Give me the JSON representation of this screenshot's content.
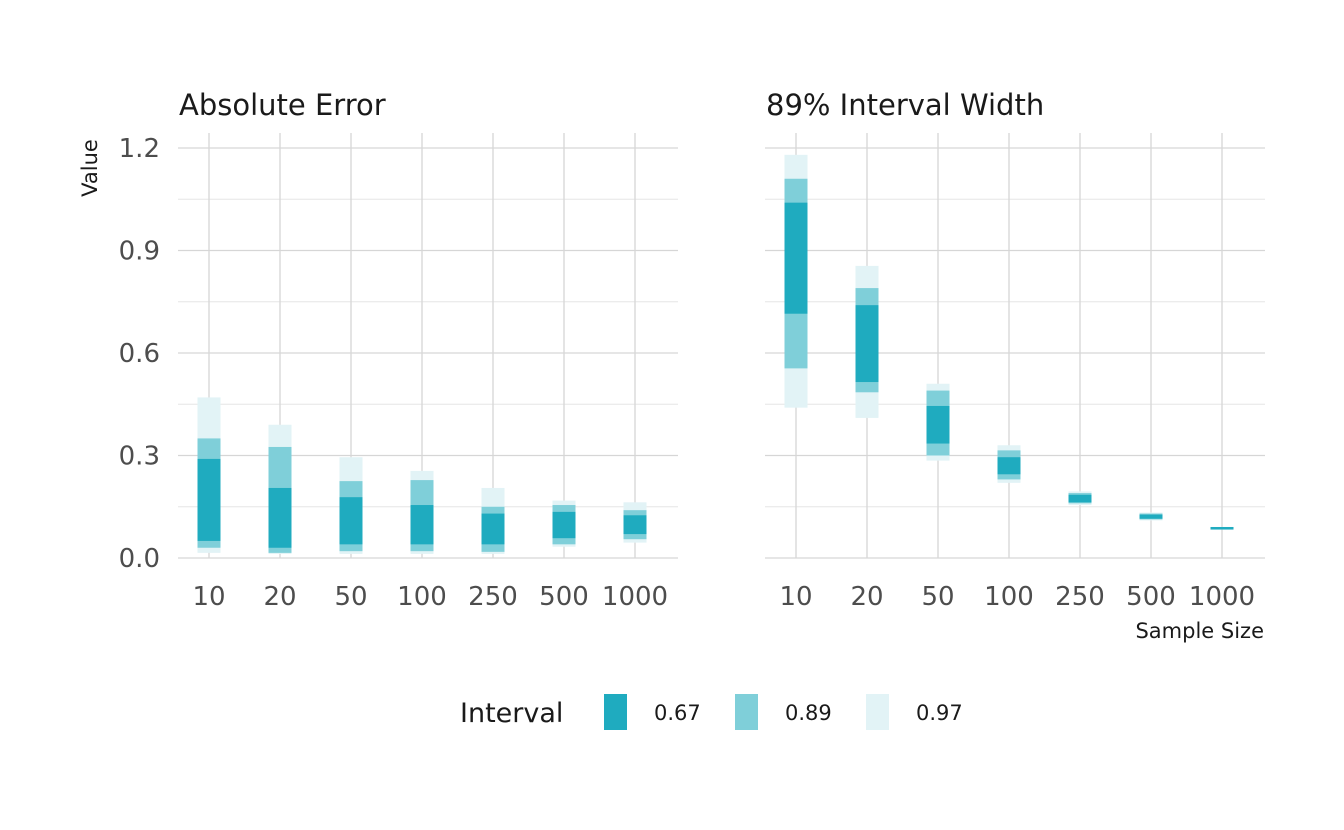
{
  "chart_data": {
    "type": "interval",
    "ylabel": "Value",
    "xlabel": "Sample Size",
    "ylim": [
      -0.03,
      1.25
    ],
    "yticks": [
      0.0,
      0.3,
      0.6,
      0.9,
      1.2
    ],
    "ytick_labels": [
      "0.0",
      "0.3",
      "0.6",
      "0.9",
      "1.2"
    ],
    "categories": [
      "10",
      "20",
      "50",
      "100",
      "250",
      "500",
      "1000"
    ],
    "grid": true,
    "legend": {
      "title": "Interval",
      "position": "bottom",
      "entries": [
        {
          "label": "0.67",
          "color": "#1fabbf"
        },
        {
          "label": "0.89",
          "color": "#7fcfd9"
        },
        {
          "label": "0.97",
          "color": "#e2f3f6"
        }
      ]
    },
    "panels": [
      {
        "title": "Absolute Error",
        "intervals": [
          {
            "category": "10",
            "i97": [
              0.015,
              0.47
            ],
            "i89": [
              0.03,
              0.35
            ],
            "i67": [
              0.05,
              0.29
            ]
          },
          {
            "category": "20",
            "i97": [
              0.012,
              0.39
            ],
            "i89": [
              0.015,
              0.325
            ],
            "i67": [
              0.03,
              0.205
            ]
          },
          {
            "category": "50",
            "i97": [
              0.012,
              0.295
            ],
            "i89": [
              0.02,
              0.225
            ],
            "i67": [
              0.04,
              0.178
            ]
          },
          {
            "category": "100",
            "i97": [
              0.012,
              0.255
            ],
            "i89": [
              0.02,
              0.228
            ],
            "i67": [
              0.04,
              0.155
            ]
          },
          {
            "category": "250",
            "i97": [
              0.012,
              0.205
            ],
            "i89": [
              0.018,
              0.15
            ],
            "i67": [
              0.04,
              0.13
            ]
          },
          {
            "category": "500",
            "i97": [
              0.033,
              0.168
            ],
            "i89": [
              0.04,
              0.155
            ],
            "i67": [
              0.058,
              0.135
            ]
          },
          {
            "category": "1000",
            "i97": [
              0.045,
              0.163
            ],
            "i89": [
              0.055,
              0.14
            ],
            "i67": [
              0.07,
              0.125
            ]
          }
        ]
      },
      {
        "title": "89% Interval Width",
        "intervals": [
          {
            "category": "10",
            "i97": [
              0.44,
              1.18
            ],
            "i89": [
              0.555,
              1.11
            ],
            "i67": [
              0.715,
              1.04
            ]
          },
          {
            "category": "20",
            "i97": [
              0.41,
              0.855
            ],
            "i89": [
              0.485,
              0.79
            ],
            "i67": [
              0.515,
              0.74
            ]
          },
          {
            "category": "50",
            "i97": [
              0.285,
              0.51
            ],
            "i89": [
              0.3,
              0.49
            ],
            "i67": [
              0.335,
              0.445
            ]
          },
          {
            "category": "100",
            "i97": [
              0.22,
              0.33
            ],
            "i89": [
              0.23,
              0.315
            ],
            "i67": [
              0.245,
              0.295
            ]
          },
          {
            "category": "250",
            "i97": [
              0.155,
              0.195
            ],
            "i89": [
              0.16,
              0.19
            ],
            "i67": [
              0.163,
              0.185
            ]
          },
          {
            "category": "500",
            "i97": [
              0.11,
              0.133
            ],
            "i89": [
              0.113,
              0.13
            ],
            "i67": [
              0.115,
              0.127
            ]
          },
          {
            "category": "1000",
            "i97": [
              0.083,
              0.091
            ],
            "i89": [
              0.084,
              0.09
            ],
            "i67": [
              0.085,
              0.089
            ]
          }
        ]
      }
    ]
  }
}
